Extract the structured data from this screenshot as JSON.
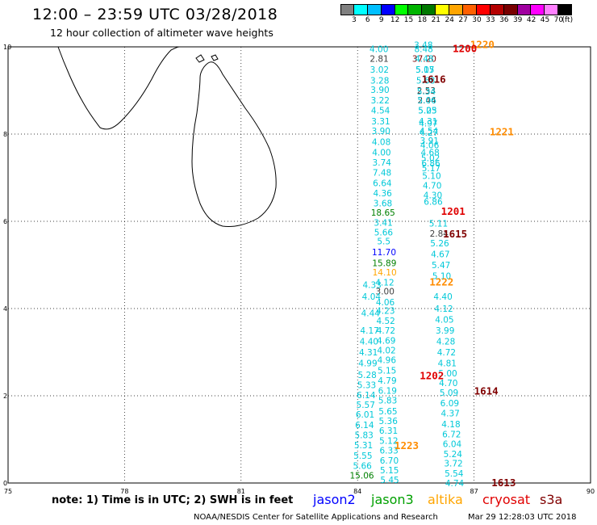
{
  "header": {
    "title": "12:00 – 23:59 UTC 03/28/2018",
    "subtitle": "12 hour collection of altimeter wave heights"
  },
  "color_scale": {
    "colors": [
      "#808080",
      "#00ffff",
      "#00bfff",
      "#0000ff",
      "#00ff00",
      "#00b400",
      "#007800",
      "#ffff00",
      "#ffa500",
      "#ff6000",
      "#ff0000",
      "#b40000",
      "#780000",
      "#a000a0",
      "#ff00ff",
      "#ff80ff",
      "#000000"
    ],
    "labels": [
      "3",
      "6",
      "9",
      "12",
      "15",
      "18",
      "21",
      "24",
      "27",
      "30",
      "33",
      "36",
      "39",
      "42",
      "45",
      "70",
      "(ft)"
    ]
  },
  "map": {
    "x_ticks": [
      "75",
      "78",
      "81",
      "84",
      "87",
      "90"
    ],
    "y_ticks": [
      "0",
      "2",
      "4",
      "6",
      "8",
      "10"
    ],
    "track_west_values": [
      {
        "v": "4.00",
        "lat": 9.95,
        "c": "#00c8d8"
      },
      {
        "v": "2.81",
        "lat": 9.73,
        "c": "#404040"
      },
      {
        "v": "3.02",
        "lat": 9.48,
        "c": "#00c8d8"
      },
      {
        "v": "3.28",
        "lat": 9.23,
        "c": "#00c8d8"
      },
      {
        "v": "3.90",
        "lat": 9.02,
        "c": "#00c8d8"
      },
      {
        "v": "3.22",
        "lat": 8.78,
        "c": "#00c8d8"
      },
      {
        "v": "4.54",
        "lat": 8.55,
        "c": "#00c8d8"
      },
      {
        "v": "3.31",
        "lat": 8.3,
        "c": "#00c8d8"
      },
      {
        "v": "3.90",
        "lat": 8.07,
        "c": "#00c8d8"
      },
      {
        "v": "4.08",
        "lat": 7.82,
        "c": "#00c8d8"
      },
      {
        "v": "4.00",
        "lat": 7.58,
        "c": "#00c8d8"
      },
      {
        "v": "3.74",
        "lat": 7.35,
        "c": "#00c8d8"
      },
      {
        "v": "7.48",
        "lat": 7.12,
        "c": "#00c8d8"
      },
      {
        "v": "6.64",
        "lat": 6.88,
        "c": "#00c8d8"
      },
      {
        "v": "4.36",
        "lat": 6.65,
        "c": "#00c8d8"
      },
      {
        "v": "3.68",
        "lat": 6.42,
        "c": "#00c8d8"
      },
      {
        "v": "18.65",
        "lat": 6.2,
        "c": "#008000"
      },
      {
        "v": "3.41",
        "lat": 5.97,
        "c": "#00c8d8"
      },
      {
        "v": "5.66",
        "lat": 5.75,
        "c": "#00c8d8"
      },
      {
        "v": "5.5",
        "lat": 5.55,
        "c": "#00c8d8"
      },
      {
        "v": "11.70",
        "lat": 5.3,
        "c": "#0000ff"
      },
      {
        "v": "15.89",
        "lat": 5.05,
        "c": "#008000"
      },
      {
        "v": "14.10",
        "lat": 4.83,
        "c": "#ffa500"
      },
      {
        "v": "4.12",
        "lat": 4.6,
        "c": "#00c8d8"
      },
      {
        "v": "3.00",
        "lat": 4.4,
        "c": "#404040"
      },
      {
        "v": "4.06",
        "lat": 4.15,
        "c": "#00c8d8"
      },
      {
        "v": "4.23",
        "lat": 3.95,
        "c": "#00c8d8"
      },
      {
        "v": "4.52",
        "lat": 3.72,
        "c": "#00c8d8"
      },
      {
        "v": "4.72",
        "lat": 3.5,
        "c": "#00c8d8"
      },
      {
        "v": "4.69",
        "lat": 3.27,
        "c": "#00c8d8"
      },
      {
        "v": "4.02",
        "lat": 3.05,
        "c": "#00c8d8"
      },
      {
        "v": "4.96",
        "lat": 2.82,
        "c": "#00c8d8"
      },
      {
        "v": "5.15",
        "lat": 2.58,
        "c": "#00c8d8"
      },
      {
        "v": "4.79",
        "lat": 2.35,
        "c": "#00c8d8"
      },
      {
        "v": "6.19",
        "lat": 2.12,
        "c": "#00c8d8"
      },
      {
        "v": "5.83",
        "lat": 1.9,
        "c": "#00c8d8"
      },
      {
        "v": "5.65",
        "lat": 1.65,
        "c": "#00c8d8"
      },
      {
        "v": "5.36",
        "lat": 1.43,
        "c": "#00c8d8"
      },
      {
        "v": "6.31",
        "lat": 1.2,
        "c": "#00c8d8"
      },
      {
        "v": "5.12",
        "lat": 0.97,
        "c": "#00c8d8"
      },
      {
        "v": "6.33",
        "lat": 0.75,
        "c": "#00c8d8"
      },
      {
        "v": "6.70",
        "lat": 0.52,
        "c": "#00c8d8"
      },
      {
        "v": "5.15",
        "lat": 0.3,
        "c": "#00c8d8"
      },
      {
        "v": "5.45",
        "lat": 0.07,
        "c": "#00c8d8"
      }
    ],
    "track_outer_values": [
      {
        "v": "4.44",
        "lat": 3.9
      },
      {
        "v": "4.17",
        "lat": 3.5
      },
      {
        "v": "4.40",
        "lat": 3.25
      },
      {
        "v": "4.31",
        "lat": 3.0
      },
      {
        "v": "4.99",
        "lat": 2.75
      },
      {
        "v": "5.28",
        "lat": 2.48
      },
      {
        "v": "5.33",
        "lat": 2.25
      },
      {
        "v": "6.14",
        "lat": 2.02
      },
      {
        "v": "5.57",
        "lat": 1.8
      },
      {
        "v": "6.01",
        "lat": 1.57
      },
      {
        "v": "6.14",
        "lat": 1.33
      },
      {
        "v": "5.83",
        "lat": 1.1
      },
      {
        "v": "5.31",
        "lat": 0.87
      },
      {
        "v": "5.55",
        "lat": 0.63
      },
      {
        "v": "5.66",
        "lat": 0.4
      },
      {
        "v": "15.06",
        "lat": 0.18,
        "c": "#008000"
      },
      {
        "v": "4.33",
        "lat": 4.55
      },
      {
        "v": "4.04",
        "lat": 4.28
      }
    ],
    "track_east_values": [
      {
        "v": "8.48",
        "lat": 9.95
      },
      {
        "v": "3.48",
        "lat": 10.05
      },
      {
        "v": "37.20",
        "lat": 9.73,
        "c": "#800000"
      },
      {
        "v": "4.48",
        "lat": 9.73
      },
      {
        "v": "5.07",
        "lat": 9.48
      },
      {
        "v": "5.15",
        "lat": 9.48
      },
      {
        "v": "2.53",
        "lat": 9.0,
        "c": "#404040"
      },
      {
        "v": "5.68",
        "lat": 9.23
      },
      {
        "v": "5.34",
        "lat": 8.98
      },
      {
        "v": "2.44",
        "lat": 8.78,
        "c": "#404040"
      },
      {
        "v": "5.06",
        "lat": 8.78
      },
      {
        "v": "5.05",
        "lat": 8.55
      },
      {
        "v": "5.23",
        "lat": 8.55
      },
      {
        "v": "4.31",
        "lat": 8.3
      },
      {
        "v": "4.97",
        "lat": 8.25
      },
      {
        "v": "4.54",
        "lat": 8.07
      },
      {
        "v": "4.27",
        "lat": 8.04
      },
      {
        "v": "3.91",
        "lat": 7.85
      },
      {
        "v": "4.06",
        "lat": 7.75
      },
      {
        "v": "4.68",
        "lat": 7.58
      },
      {
        "v": "5.02",
        "lat": 7.45
      },
      {
        "v": "6.86",
        "lat": 7.33
      },
      {
        "v": "5.17",
        "lat": 7.22
      },
      {
        "v": "5.10",
        "lat": 7.05
      },
      {
        "v": "4.70",
        "lat": 6.82
      },
      {
        "v": "4.30",
        "lat": 6.6
      },
      {
        "v": "6.86",
        "lat": 6.45
      },
      {
        "v": "5.11",
        "lat": 5.95
      },
      {
        "v": "2.84",
        "lat": 5.72,
        "c": "#404040"
      },
      {
        "v": "5.26",
        "lat": 5.5
      },
      {
        "v": "4.67",
        "lat": 5.25
      },
      {
        "v": "5.47",
        "lat": 5.0
      },
      {
        "v": "5.10",
        "lat": 4.75
      },
      {
        "v": "4.40",
        "lat": 4.28
      },
      {
        "v": "4.12",
        "lat": 4.0
      },
      {
        "v": "4.05",
        "lat": 3.75
      },
      {
        "v": "3.99",
        "lat": 3.5
      },
      {
        "v": "4.28",
        "lat": 3.25
      },
      {
        "v": "4.72",
        "lat": 3.0
      },
      {
        "v": "4.81",
        "lat": 2.75
      },
      {
        "v": "5.00",
        "lat": 2.52
      },
      {
        "v": "4.70",
        "lat": 2.3
      },
      {
        "v": "5.09",
        "lat": 2.07
      },
      {
        "v": "6.09",
        "lat": 1.83
      },
      {
        "v": "4.37",
        "lat": 1.6
      },
      {
        "v": "4.18",
        "lat": 1.35
      },
      {
        "v": "6.72",
        "lat": 1.12
      },
      {
        "v": "6.04",
        "lat": 0.9
      },
      {
        "v": "5.24",
        "lat": 0.67
      },
      {
        "v": "3.72",
        "lat": 0.45
      },
      {
        "v": "5.54",
        "lat": 0.22
      },
      {
        "v": "4.74",
        "lat": 0.0
      }
    ],
    "pass_labels": [
      {
        "t": "1220",
        "lon": 86.9,
        "lat": 10.05,
        "c": "#ff8c00"
      },
      {
        "t": "1200",
        "lon": 86.45,
        "lat": 9.95,
        "c": "#e00000"
      },
      {
        "t": "1616",
        "lon": 85.65,
        "lat": 9.25,
        "c": "#800000"
      },
      {
        "t": "1221",
        "lon": 87.4,
        "lat": 8.05,
        "c": "#ff8c00"
      },
      {
        "t": "1201",
        "lon": 86.15,
        "lat": 6.22,
        "c": "#e00000"
      },
      {
        "t": "1615",
        "lon": 86.2,
        "lat": 5.7,
        "c": "#800000"
      },
      {
        "t": "1222",
        "lon": 85.85,
        "lat": 4.6,
        "c": "#ff8c00"
      },
      {
        "t": "1202",
        "lon": 85.6,
        "lat": 2.45,
        "c": "#e00000"
      },
      {
        "t": "1614",
        "lon": 87.0,
        "lat": 2.1,
        "c": "#800000"
      },
      {
        "t": "1223",
        "lon": 84.95,
        "lat": 0.85,
        "c": "#ff8c00"
      },
      {
        "t": "1613",
        "lon": 87.45,
        "lat": 0.0,
        "c": "#800000"
      }
    ]
  },
  "footer": {
    "note": "note:  1) Time is in UTC;  2) SWH is in feet",
    "legend": [
      {
        "name": "jason2",
        "color": "#0000ff"
      },
      {
        "name": "jason3",
        "color": "#00a000"
      },
      {
        "name": "altika",
        "color": "#ffa500"
      },
      {
        "name": "cryosat",
        "color": "#e00000"
      },
      {
        "name": "s3a",
        "color": "#800000"
      }
    ],
    "credit": "NOAA/NESDIS Center for Satellite Applications and Research",
    "timestamp": "Mar 29 12:28:03 UTC 2018"
  }
}
